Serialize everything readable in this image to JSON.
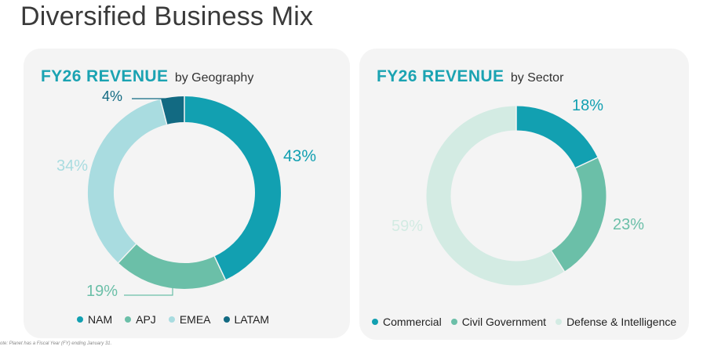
{
  "page": {
    "title": "Diversified Business Mix",
    "footnote": "ote: Planet has a Fiscal Year (FY) ending January 31."
  },
  "chart_data": [
    {
      "type": "pie",
      "title": "FY26 REVENUE",
      "subtitle": "by Geography",
      "categories": [
        "NAM",
        "APJ",
        "EMEA",
        "LATAM"
      ],
      "values": [
        43,
        19,
        34,
        4
      ],
      "labels": [
        "43%",
        "19%",
        "34%",
        "4%"
      ],
      "colors": [
        "#12a0b1",
        "#6bbfa8",
        "#a9dce0",
        "#126a82"
      ],
      "donut": true,
      "legend_position": "bottom"
    },
    {
      "type": "pie",
      "title": "FY26 REVENUE",
      "subtitle": "by Sector",
      "categories": [
        "Commercial",
        "Civil Government",
        "Defense & Intelligence"
      ],
      "values": [
        18,
        23,
        59
      ],
      "labels": [
        "18%",
        "23%",
        "59%"
      ],
      "colors": [
        "#12a0b1",
        "#6bbfa8",
        "#d3ebe3"
      ],
      "donut": true,
      "legend_position": "bottom"
    }
  ]
}
